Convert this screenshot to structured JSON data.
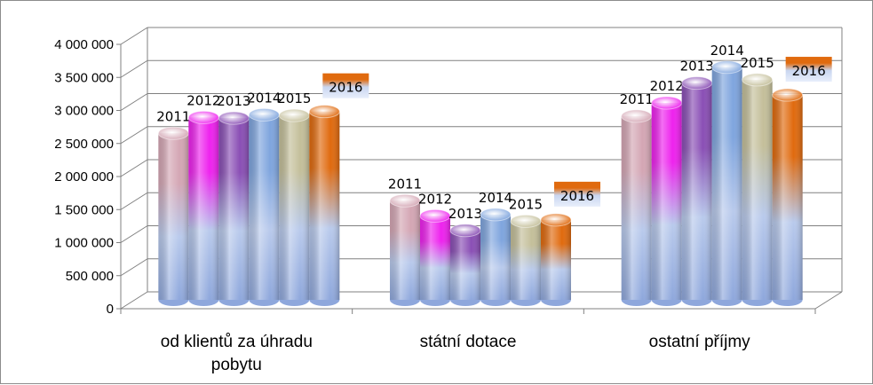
{
  "chart_data": {
    "type": "bar",
    "categories": [
      [
        "od klientů za úhradu",
        "pobytu"
      ],
      [
        "státní dotace"
      ],
      [
        "ostatní příjmy"
      ]
    ],
    "series": [
      {
        "name": "2011",
        "values": [
          2520000,
          1500000,
          2780000
        ],
        "color": "#d4a6b4"
      },
      {
        "name": "2012",
        "values": [
          2760000,
          1270000,
          2980000
        ],
        "color": "#ee22ee"
      },
      {
        "name": "2013",
        "values": [
          2750000,
          1050000,
          3280000
        ],
        "color": "#8a4fb5"
      },
      {
        "name": "2014",
        "values": [
          2800000,
          1290000,
          3520000
        ],
        "color": "#7fa5de"
      },
      {
        "name": "2015",
        "values": [
          2790000,
          1190000,
          3330000
        ],
        "color": "#c4bf9a"
      },
      {
        "name": "2016",
        "values": [
          2850000,
          1210000,
          3100000
        ],
        "color": "#e06a0e"
      }
    ],
    "y_ticks": [
      "0",
      "500 000",
      "1 000 000",
      "1 500 000",
      "2 000 000",
      "2 500 000",
      "3 000 000",
      "3 500 000",
      "4 000 000"
    ],
    "ylim": [
      0,
      4000000
    ],
    "grid": true,
    "legend": "none",
    "style": "3d-cylinder"
  }
}
